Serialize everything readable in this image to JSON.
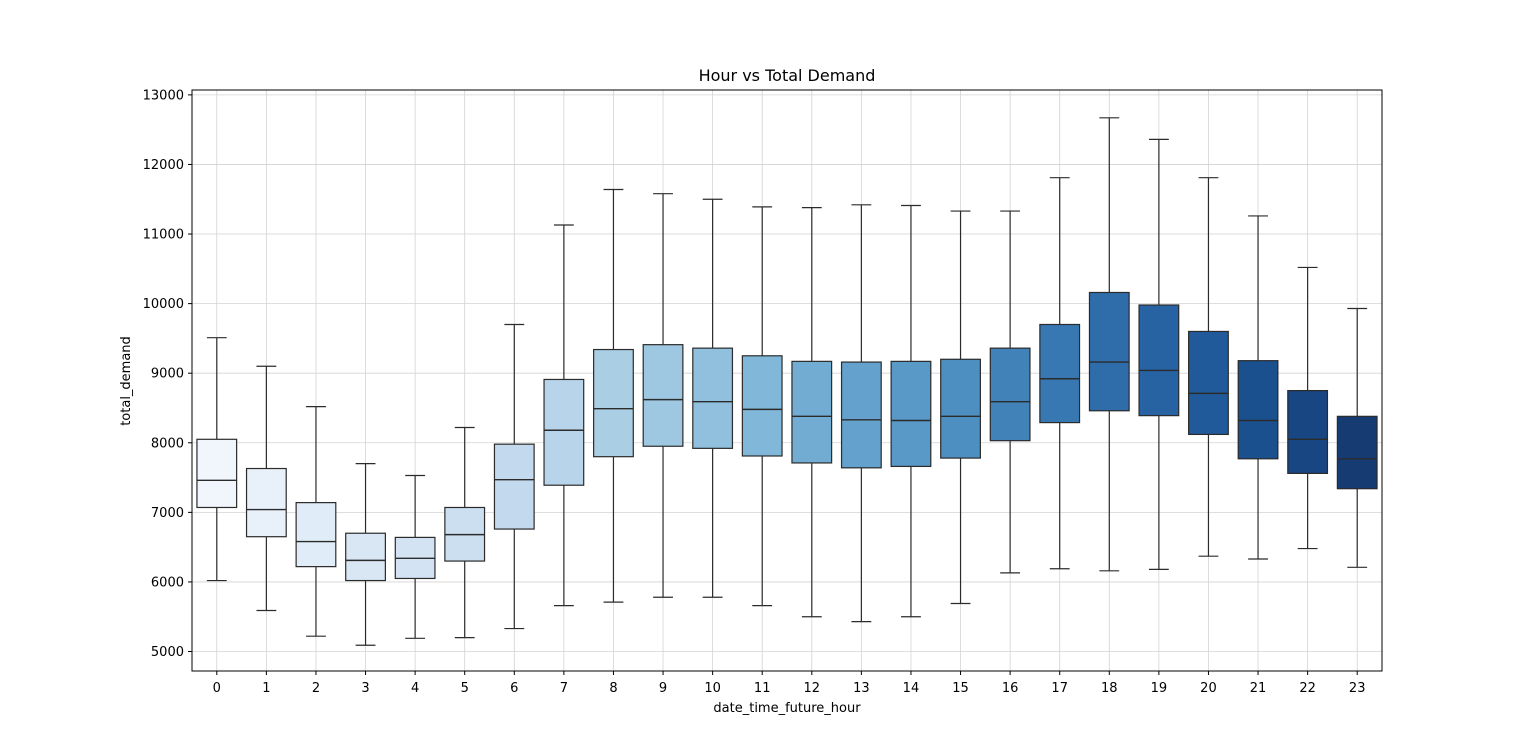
{
  "chart_data": {
    "type": "box",
    "title": "Hour vs Total Demand",
    "xlabel": "date_time_future_hour",
    "ylabel": "total_demand",
    "ylim": [
      4720,
      13070
    ],
    "yticks": [
      5000,
      6000,
      7000,
      8000,
      9000,
      10000,
      11000,
      12000,
      13000
    ],
    "grid": true,
    "categories": [
      "0",
      "1",
      "2",
      "3",
      "4",
      "5",
      "6",
      "7",
      "8",
      "9",
      "10",
      "11",
      "12",
      "13",
      "14",
      "15",
      "16",
      "17",
      "18",
      "19",
      "20",
      "21",
      "22",
      "23"
    ],
    "boxes": [
      {
        "whislo": 6020,
        "q1": 7070,
        "med": 7460,
        "q3": 8050,
        "whishi": 9510,
        "color": "#f1f6fc"
      },
      {
        "whislo": 5590,
        "q1": 6650,
        "med": 7040,
        "q3": 7630,
        "whishi": 9100,
        "color": "#e8f1fa"
      },
      {
        "whislo": 5220,
        "q1": 6220,
        "med": 6580,
        "q3": 7140,
        "whishi": 8520,
        "color": "#e0ecf7"
      },
      {
        "whislo": 5090,
        "q1": 6020,
        "med": 6310,
        "q3": 6700,
        "whishi": 7700,
        "color": "#d9e7f5"
      },
      {
        "whislo": 5190,
        "q1": 6050,
        "med": 6340,
        "q3": 6640,
        "whishi": 7530,
        "color": "#d3e3f3"
      },
      {
        "whislo": 5200,
        "q1": 6300,
        "med": 6680,
        "q3": 7070,
        "whishi": 8220,
        "color": "#cbdff1"
      },
      {
        "whislo": 5330,
        "q1": 6760,
        "med": 7470,
        "q3": 7980,
        "whishi": 9700,
        "color": "#c2d9ee"
      },
      {
        "whislo": 5660,
        "q1": 7390,
        "med": 8180,
        "q3": 8910,
        "whishi": 11130,
        "color": "#b7d4ea"
      },
      {
        "whislo": 5710,
        "q1": 7800,
        "med": 8490,
        "q3": 9340,
        "whishi": 11640,
        "color": "#aacfe5"
      },
      {
        "whislo": 5780,
        "q1": 7950,
        "med": 8620,
        "q3": 9410,
        "whishi": 11580,
        "color": "#9ec8e1"
      },
      {
        "whislo": 5780,
        "q1": 7920,
        "med": 8590,
        "q3": 9360,
        "whishi": 11500,
        "color": "#90c0dd"
      },
      {
        "whislo": 5660,
        "q1": 7810,
        "med": 8480,
        "q3": 9250,
        "whishi": 11390,
        "color": "#81b8d9"
      },
      {
        "whislo": 5500,
        "q1": 7710,
        "med": 8380,
        "q3": 9170,
        "whishi": 11380,
        "color": "#72acd3"
      },
      {
        "whislo": 5430,
        "q1": 7640,
        "med": 8330,
        "q3": 9160,
        "whishi": 11420,
        "color": "#64a2cd"
      },
      {
        "whislo": 5500,
        "q1": 7660,
        "med": 8320,
        "q3": 9170,
        "whishi": 11410,
        "color": "#5899c7"
      },
      {
        "whislo": 5690,
        "q1": 7780,
        "med": 8380,
        "q3": 9200,
        "whishi": 11330,
        "color": "#4c8fc0"
      },
      {
        "whislo": 6130,
        "q1": 8030,
        "med": 8590,
        "q3": 9360,
        "whishi": 11330,
        "color": "#4183b9"
      },
      {
        "whislo": 6190,
        "q1": 8290,
        "med": 8920,
        "q3": 9700,
        "whishi": 11810,
        "color": "#3878b2"
      },
      {
        "whislo": 6160,
        "q1": 8460,
        "med": 9160,
        "q3": 10160,
        "whishi": 12670,
        "color": "#2e6caa"
      },
      {
        "whislo": 6180,
        "q1": 8390,
        "med": 9040,
        "q3": 9980,
        "whishi": 12360,
        "color": "#2763a3"
      },
      {
        "whislo": 6370,
        "q1": 8120,
        "med": 8710,
        "q3": 9600,
        "whishi": 11810,
        "color": "#205a9a"
      },
      {
        "whislo": 6330,
        "q1": 7770,
        "med": 8320,
        "q3": 9180,
        "whishi": 11260,
        "color": "#1b508f"
      },
      {
        "whislo": 6480,
        "q1": 7560,
        "med": 8050,
        "q3": 8750,
        "whishi": 10520,
        "color": "#174682"
      },
      {
        "whislo": 6210,
        "q1": 7340,
        "med": 7770,
        "q3": 8380,
        "whishi": 9930,
        "color": "#153b72"
      }
    ]
  }
}
